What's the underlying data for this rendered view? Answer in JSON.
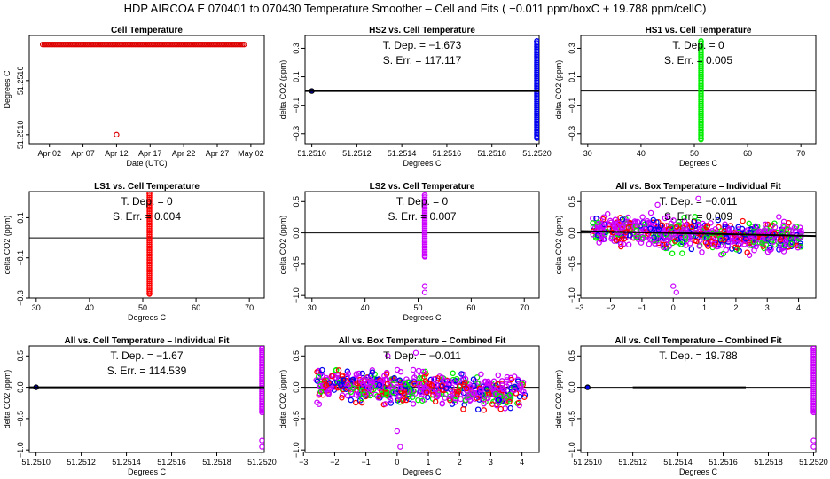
{
  "page": {
    "title": "HDP   AIRCOA E   070401 to 070430   Temperature Smoother – Cell and Fits ( −0.011  ppm/boxC +  19.788  ppm/cellC)"
  },
  "colors": {
    "black": "#000000",
    "red": "#ff0000",
    "dark_red": "#aa0000",
    "blue": "#0000ee",
    "green": "#00ee00",
    "magenta": "#cc00ff"
  },
  "chart_data": [
    {
      "id": "cell-temperature",
      "type": "scatter",
      "title": "Cell Temperature",
      "xlabel": "Date (UTC)",
      "ylabel": "Degrees C",
      "xlim": [
        -2,
        33
      ],
      "ylim": [
        51.2509,
        51.2521
      ],
      "xticks": [
        1,
        6,
        11,
        16,
        21,
        26,
        31
      ],
      "xticklabels": [
        "Apr 02",
        "Apr 07",
        "Apr 12",
        "Apr 17",
        "Apr 22",
        "Apr 27",
        "May 02"
      ],
      "yticks": [
        51.251,
        51.2516
      ],
      "yticklabels": [
        "51.2510",
        "51.2516"
      ],
      "series": [
        {
          "name": "cell",
          "color": "#dd0000",
          "style": "open",
          "x_from": 0,
          "x_to": 30,
          "x_step": 0.25,
          "y": 51.252
        },
        {
          "name": "outlier",
          "color": "#dd0000",
          "style": "open",
          "points": [
            [
              11,
              51.251
            ]
          ]
        }
      ]
    },
    {
      "id": "hs2-vs-cell",
      "type": "scatter",
      "title": "HS2 vs. Cell Temperature",
      "xlabel": "Degrees C",
      "ylabel": "delta CO2 (ppm)",
      "xlim": [
        51.25097,
        51.25201
      ],
      "ylim": [
        -0.37,
        0.39
      ],
      "xticks": [
        51.251,
        51.2512,
        51.2514,
        51.2516,
        51.2518,
        51.252
      ],
      "xticklabels": [
        "51.2510",
        "51.2512",
        "51.2514",
        "51.2516",
        "51.2518",
        "51.2520"
      ],
      "yticks": [
        -0.3,
        -0.1,
        0.1,
        0.3
      ],
      "yticklabels": [
        "−0.3",
        "−0.1",
        "0.1",
        "0.3"
      ],
      "annotations": [
        "T. Dep. =  −1.673",
        "S. Err. =  117.117"
      ],
      "hline": 0,
      "fit_line": {
        "x": [
          51.25097,
          51.25201
        ],
        "y": [
          0,
          0
        ],
        "width": 2
      },
      "series": [
        {
          "name": "HS2",
          "color": "#0000ee",
          "style": "stack",
          "x": 51.252,
          "y_from": -0.33,
          "y_to": 0.35
        },
        {
          "name": "HS2 low",
          "color": "#0000ee",
          "style": "filled",
          "points": [
            [
              51.251,
              0.0
            ]
          ]
        }
      ]
    },
    {
      "id": "hs1-vs-cell",
      "type": "scatter",
      "title": "HS1 vs. Cell Temperature",
      "xlabel": "Degrees C",
      "ylabel": "delta CO2 (ppm)",
      "xlim": [
        28.7,
        72.8
      ],
      "ylim": [
        -0.37,
        0.39
      ],
      "xticks": [
        30,
        40,
        50,
        60,
        70
      ],
      "xticklabels": [
        "30",
        "40",
        "50",
        "60",
        "70"
      ],
      "yticks": [
        -0.3,
        -0.1,
        0.1,
        0.3
      ],
      "yticklabels": [
        "−0.3",
        "−0.1",
        "0.1",
        "0.3"
      ],
      "annotations": [
        "T. Dep. =  0",
        "S. Err. =  0.005"
      ],
      "hline": 0,
      "series": [
        {
          "name": "HS1",
          "color": "#00ee00",
          "style": "stack",
          "x": 51.25,
          "y_from": -0.34,
          "y_to": 0.35
        }
      ]
    },
    {
      "id": "ls1-vs-cell",
      "type": "scatter",
      "title": "LS1 vs. Cell Temperature",
      "xlabel": "Degrees C",
      "ylabel": "delta CO2 (ppm)",
      "xlim": [
        28.7,
        72.8
      ],
      "ylim": [
        -0.3,
        0.23
      ],
      "xticks": [
        30,
        40,
        50,
        60,
        70
      ],
      "xticklabels": [
        "30",
        "40",
        "50",
        "60",
        "70"
      ],
      "yticks": [
        -0.3,
        -0.1,
        0.1
      ],
      "yticklabels": [
        "−0.3",
        "−0.1",
        "0.1"
      ],
      "annotations": [
        "T. Dep. =  0",
        "S. Err. =  0.004"
      ],
      "hline": 0,
      "series": [
        {
          "name": "LS1",
          "color": "#ff0000",
          "style": "stack",
          "x": 51.25,
          "y_from": -0.28,
          "y_to": 0.22
        }
      ]
    },
    {
      "id": "ls2-vs-cell",
      "type": "scatter",
      "title": "LS2 vs. Cell Temperature",
      "xlabel": "Degrees C",
      "ylabel": "delta CO2 (ppm)",
      "xlim": [
        28.7,
        72.8
      ],
      "ylim": [
        -1.04,
        0.66
      ],
      "xticks": [
        30,
        40,
        50,
        60,
        70
      ],
      "xticklabels": [
        "30",
        "40",
        "50",
        "60",
        "70"
      ],
      "yticks": [
        -1.0,
        -0.5,
        0.0,
        0.5
      ],
      "yticklabels": [
        "−1.0",
        "−0.5",
        "0.0",
        "0.5"
      ],
      "annotations": [
        "T. Dep. =  0",
        "S. Err. =  0.007"
      ],
      "hline": 0,
      "series": [
        {
          "name": "LS2",
          "color": "#cc00ff",
          "style": "stack",
          "x": 51.25,
          "y_from": -0.38,
          "y_to": 0.6
        },
        {
          "name": "LS2 outliers",
          "color": "#cc00ff",
          "style": "open",
          "points": [
            [
              51.25,
              -0.85
            ],
            [
              51.25,
              -0.95
            ]
          ]
        }
      ]
    },
    {
      "id": "all-vs-box-individual",
      "type": "scatter",
      "title": "All vs. Box Temperature – Individual Fit",
      "xlabel": "",
      "ylabel": "delta CO2 (ppm)",
      "xlim": [
        -2.95,
        4.55
      ],
      "ylim": [
        -1.04,
        0.66
      ],
      "xticks": [
        -3,
        -2,
        -1,
        0,
        1,
        2,
        3,
        4
      ],
      "xticklabels": [
        "−3",
        "−2",
        "−1",
        "0",
        "1",
        "2",
        "3",
        "4"
      ],
      "yticks": [
        -1.0,
        -0.5,
        0.0,
        0.5
      ],
      "yticklabels": [
        "−1.0",
        "−0.5",
        "0.0",
        "0.5"
      ],
      "annotations": [
        "T. Dep. =  −0.011",
        "S. Err. =  0.009"
      ],
      "hline": 0,
      "fit_line": {
        "x": [
          -2.95,
          4.55
        ],
        "y": [
          0.03,
          -0.05
        ],
        "width": 2
      },
      "cloud": {
        "x_from": -2.6,
        "x_to": 4.1,
        "spread": 0.16,
        "count": 700,
        "seed": 7,
        "colors": [
          "#cc00ff",
          "#cc00ff",
          "#cc00ff",
          "#ff0000",
          "#0000ee",
          "#00ee00"
        ]
      },
      "series": [
        {
          "name": "outliers",
          "color": "#cc00ff",
          "style": "open",
          "points": [
            [
              0.0,
              -0.85
            ],
            [
              0.1,
              -0.95
            ],
            [
              0.8,
              0.55
            ],
            [
              -0.5,
              0.45
            ]
          ]
        }
      ]
    },
    {
      "id": "all-vs-cell-individual",
      "type": "scatter",
      "title": "All vs. Cell Temperature – Individual Fit",
      "xlabel": "Degrees C",
      "ylabel": "delta CO2 (ppm)",
      "xlim": [
        51.25097,
        51.25201
      ],
      "ylim": [
        -1.04,
        0.66
      ],
      "xticks": [
        51.251,
        51.2512,
        51.2514,
        51.2516,
        51.2518,
        51.252
      ],
      "xticklabels": [
        "51.2510",
        "51.2512",
        "51.2514",
        "51.2516",
        "51.2518",
        "51.2520"
      ],
      "yticks": [
        -1.0,
        -0.5,
        0.0,
        0.5
      ],
      "yticklabels": [
        "−1.0",
        "−0.5",
        "0.0",
        "0.5"
      ],
      "annotations": [
        "T. Dep. =  −1.67",
        "S. Err. =  114.539"
      ],
      "hline": 0,
      "fit_line": {
        "x": [
          51.25097,
          51.25201
        ],
        "y": [
          0,
          0
        ],
        "width": 2
      },
      "series": [
        {
          "name": "all",
          "color": "#cc00ff",
          "style": "stack",
          "x": 51.252,
          "y_from": -0.4,
          "y_to": 0.62
        },
        {
          "name": "all outliers",
          "color": "#cc00ff",
          "style": "open",
          "points": [
            [
              51.252,
              -0.85
            ],
            [
              51.252,
              -0.95
            ]
          ]
        },
        {
          "name": "low",
          "color": "#0000ee",
          "style": "filled",
          "points": [
            [
              51.251,
              0.0
            ]
          ]
        }
      ]
    },
    {
      "id": "all-vs-box-combined",
      "type": "scatter",
      "title": "All vs. Box Temperature – Combined Fit",
      "xlabel": "Degrees C",
      "ylabel": "delta CO2 (ppm)",
      "xlim": [
        -2.95,
        4.55
      ],
      "ylim": [
        -1.04,
        0.66
      ],
      "xticks": [
        -3,
        -2,
        -1,
        0,
        1,
        2,
        3,
        4
      ],
      "xticklabels": [
        "−3",
        "−2",
        "−1",
        "0",
        "1",
        "2",
        "3",
        "4"
      ],
      "yticks": [
        -1.0,
        -0.5,
        0.0,
        0.5
      ],
      "yticklabels": [
        "−1.0",
        "−0.5",
        "0.0",
        "0.5"
      ],
      "annotations": [
        "T. Dep. =  −0.011"
      ],
      "hline": 0,
      "cloud": {
        "x_from": -2.6,
        "x_to": 4.1,
        "spread": 0.17,
        "count": 700,
        "seed": 19,
        "colors": [
          "#cc00ff",
          "#cc00ff",
          "#cc00ff",
          "#ff0000",
          "#0000ee",
          "#00ee00"
        ]
      },
      "series": [
        {
          "name": "outliers",
          "color": "#cc00ff",
          "style": "open",
          "points": [
            [
              0.0,
              -0.7
            ],
            [
              0.1,
              -0.95
            ],
            [
              0.6,
              0.55
            ],
            [
              -0.3,
              0.5
            ]
          ]
        }
      ]
    },
    {
      "id": "all-vs-cell-combined",
      "type": "scatter",
      "title": "All vs. Cell Temperature – Combined Fit",
      "xlabel": "Degrees C",
      "ylabel": "delta CO2 (ppm)",
      "xlim": [
        51.25097,
        51.25201
      ],
      "ylim": [
        -1.04,
        0.66
      ],
      "xticks": [
        51.251,
        51.2512,
        51.2514,
        51.2516,
        51.2518,
        51.252
      ],
      "xticklabels": [
        "51.2510",
        "51.2512",
        "51.2514",
        "51.2516",
        "51.2518",
        "51.2520"
      ],
      "yticks": [
        -1.0,
        -0.5,
        0.0,
        0.5
      ],
      "yticklabels": [
        "−1.0",
        "−0.5",
        "0.0",
        "0.5"
      ],
      "annotations": [
        "T. Dep. =  19.788"
      ],
      "hline": 0,
      "fit_line": {
        "x": [
          51.2512,
          51.2517
        ],
        "y": [
          0,
          0
        ],
        "width": 2
      },
      "series": [
        {
          "name": "all",
          "color": "#cc00ff",
          "style": "stack",
          "x": 51.252,
          "y_from": -0.4,
          "y_to": 0.62
        },
        {
          "name": "all outliers",
          "color": "#cc00ff",
          "style": "open",
          "points": [
            [
              51.252,
              -0.85
            ],
            [
              51.252,
              -0.95
            ]
          ]
        },
        {
          "name": "low",
          "color": "#0000ee",
          "style": "filled",
          "points": [
            [
              51.251,
              0.0
            ]
          ]
        }
      ]
    }
  ]
}
